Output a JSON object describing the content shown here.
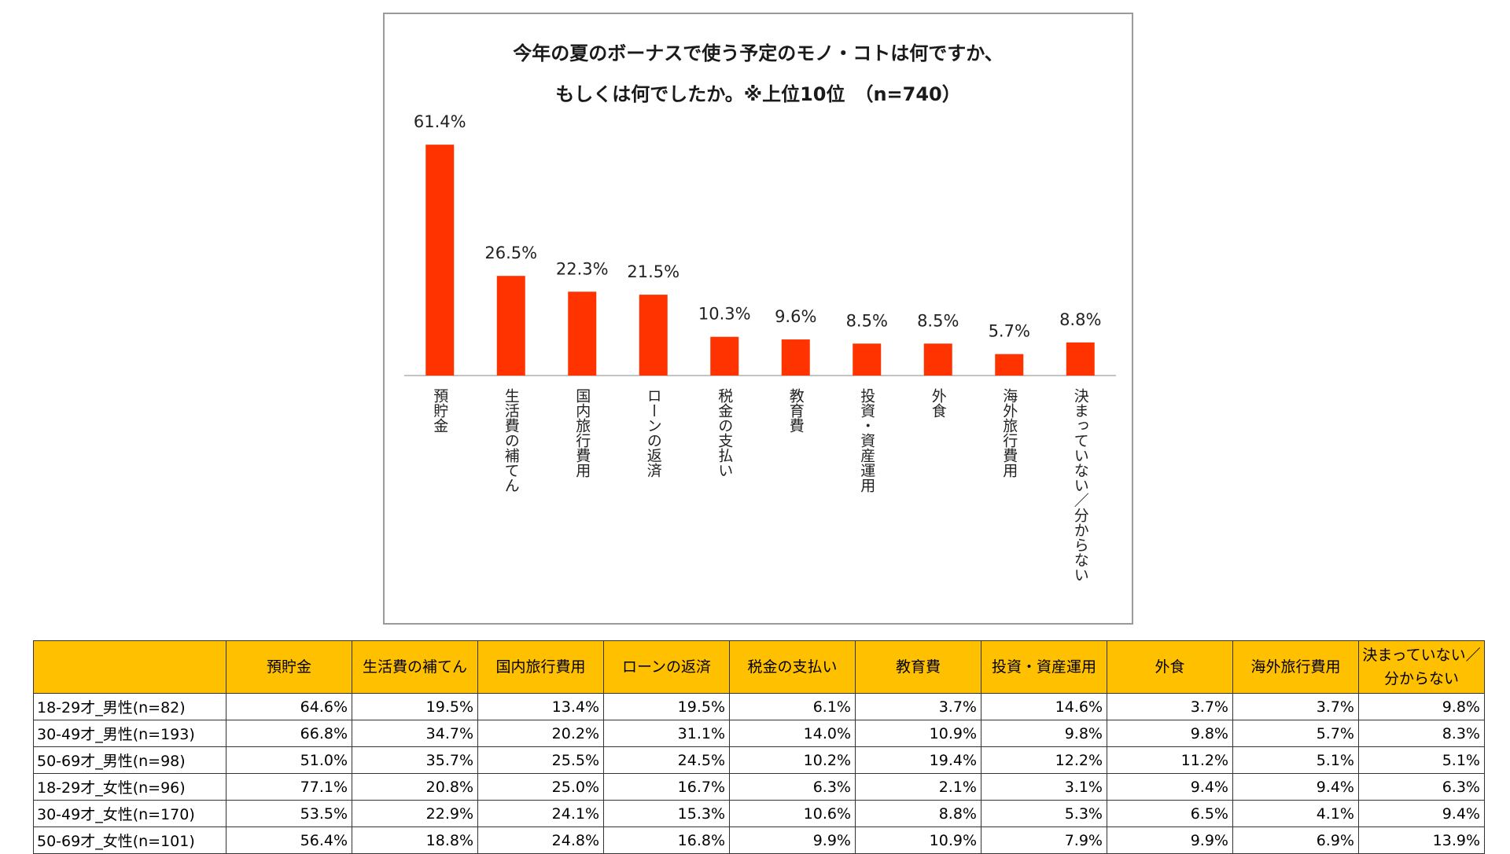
{
  "chart_data": {
    "type": "bar",
    "title": "今年の夏のボーナスで使う予定のモノ・コトは何ですか、",
    "subtitle": "もしくは何でしたか。※上位10位　（n=740）",
    "categories": [
      "預貯金",
      "生活費の補てん",
      "国内旅行費用",
      "ローンの返済",
      "税金の支払い",
      "教育費",
      "投資・資産運用",
      "外食",
      "海外旅行費用",
      "決まっていない／分からない"
    ],
    "values": [
      61.4,
      26.5,
      22.3,
      21.5,
      10.3,
      9.6,
      8.5,
      8.5,
      5.7,
      8.8
    ],
    "value_labels": [
      "61.4%",
      "26.5%",
      "22.3%",
      "21.5%",
      "10.3%",
      "9.6%",
      "8.5%",
      "8.5%",
      "5.7%",
      "8.8%"
    ],
    "bar_color": "#ff3300",
    "ylim": [
      0,
      70
    ],
    "grid": false
  },
  "table": {
    "corner": "",
    "headers": [
      "預貯金",
      "生活費の補てん",
      "国内旅行費用",
      "ローンの返済",
      "税金の支払い",
      "教育費",
      "投資・資産運用",
      "外食",
      "海外旅行費用",
      "決まっていない／分からない"
    ],
    "header_color": "#ffc000",
    "rows": [
      {
        "label": "18-29才_男性(n=82)",
        "values": [
          "64.6%",
          "19.5%",
          "13.4%",
          "19.5%",
          "6.1%",
          "3.7%",
          "14.6%",
          "3.7%",
          "3.7%",
          "9.8%"
        ]
      },
      {
        "label": "30-49才_男性(n=193)",
        "values": [
          "66.8%",
          "34.7%",
          "20.2%",
          "31.1%",
          "14.0%",
          "10.9%",
          "9.8%",
          "9.8%",
          "5.7%",
          "8.3%"
        ]
      },
      {
        "label": "50-69才_男性(n=98)",
        "values": [
          "51.0%",
          "35.7%",
          "25.5%",
          "24.5%",
          "10.2%",
          "19.4%",
          "12.2%",
          "11.2%",
          "5.1%",
          "5.1%"
        ]
      },
      {
        "label": "18-29才_女性(n=96)",
        "values": [
          "77.1%",
          "20.8%",
          "25.0%",
          "16.7%",
          "6.3%",
          "2.1%",
          "3.1%",
          "9.4%",
          "9.4%",
          "6.3%"
        ]
      },
      {
        "label": "30-49才_女性(n=170)",
        "values": [
          "53.5%",
          "22.9%",
          "24.1%",
          "15.3%",
          "10.6%",
          "8.8%",
          "5.3%",
          "6.5%",
          "4.1%",
          "9.4%"
        ]
      },
      {
        "label": "50-69才_女性(n=101)",
        "values": [
          "56.4%",
          "18.8%",
          "24.8%",
          "16.8%",
          "9.9%",
          "10.9%",
          "7.9%",
          "9.9%",
          "6.9%",
          "13.9%"
        ]
      }
    ]
  }
}
